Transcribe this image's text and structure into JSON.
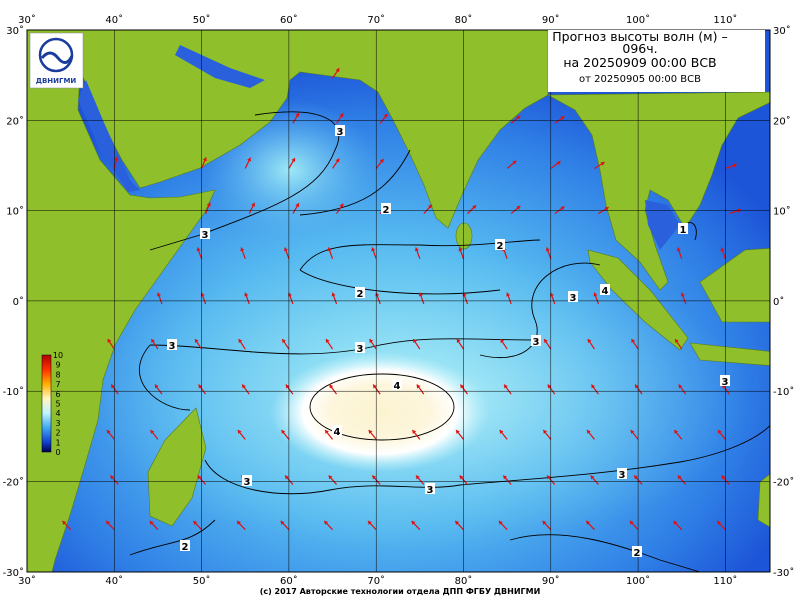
{
  "header": {
    "line1": "Прогноз высоты волн (м) –",
    "line2": "096ч.",
    "line3": "на 20250909 00:00 ВСВ",
    "line4": "от 20250905 00:00 ВСВ"
  },
  "logo": "ДВНИГМИ",
  "axes": {
    "xticks": [
      {
        "value": 30,
        "label": "30˚"
      },
      {
        "value": 40,
        "label": "40˚"
      },
      {
        "value": 50,
        "label": "50˚"
      },
      {
        "value": 60,
        "label": "60˚"
      },
      {
        "value": 70,
        "label": "70˚"
      },
      {
        "value": 80,
        "label": "80˚"
      },
      {
        "value": 90,
        "label": "90˚"
      },
      {
        "value": 100,
        "label": "100˚"
      },
      {
        "value": 110,
        "label": "110˚"
      }
    ],
    "yticks": [
      {
        "value": 30,
        "label": "30˚"
      },
      {
        "value": 20,
        "label": "20˚"
      },
      {
        "value": 10,
        "label": "10˚"
      },
      {
        "value": 0,
        "label": "0˚"
      },
      {
        "value": -10,
        "label": "-10˚"
      },
      {
        "value": -20,
        "label": "-20˚"
      },
      {
        "value": -30,
        "label": "-30˚"
      }
    ]
  },
  "colorbar_ticks": [
    0,
    1,
    2,
    3,
    4,
    5,
    6,
    7,
    8,
    9,
    10
  ],
  "contour_labels": [
    "3",
    "2",
    "3",
    "2",
    "2",
    "3",
    "4",
    "1",
    "3",
    "3",
    "3",
    "4",
    "4",
    "3",
    "3",
    "3",
    "3",
    "2",
    "2"
  ],
  "footer": "(c) 2017 Авторские технологии отдела ДПП ФГБУ ДВНИГМИ"
}
